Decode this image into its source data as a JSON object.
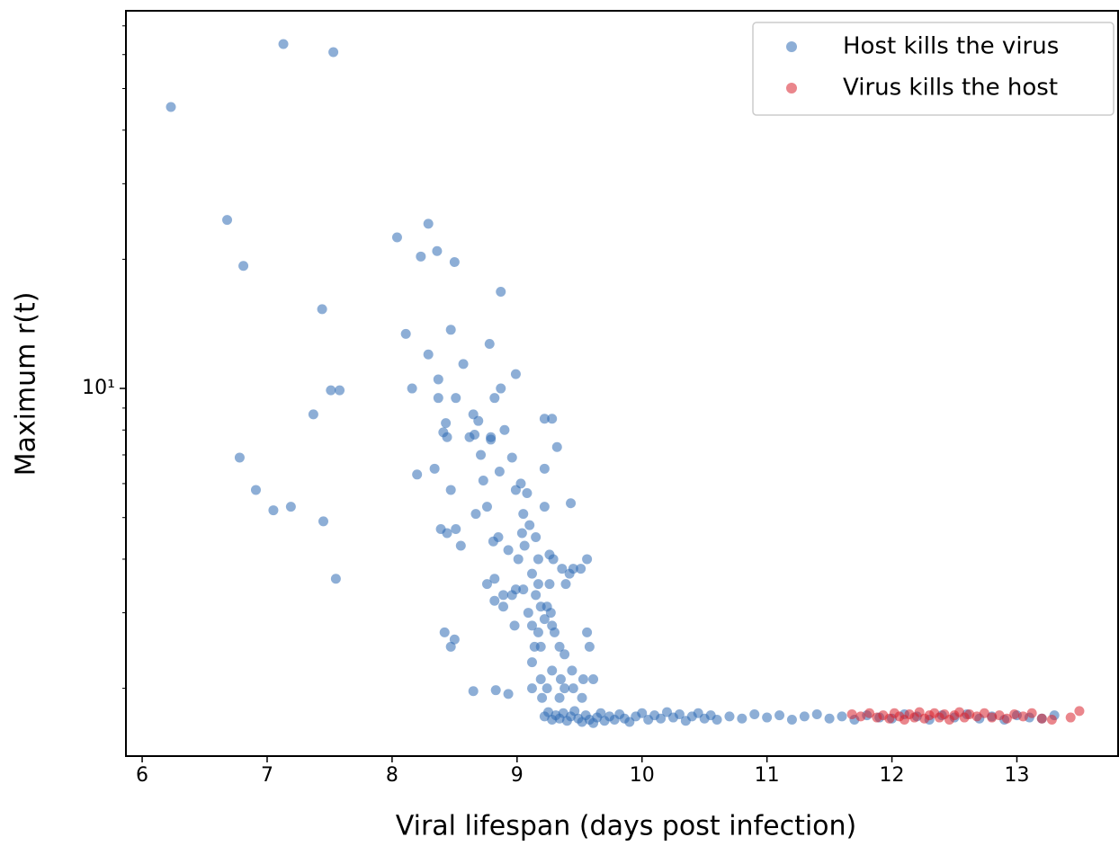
{
  "chart_data": {
    "type": "scatter",
    "xlabel": "Viral lifespan (days post infection)",
    "ylabel": "Maximum r(t)",
    "xlim": [
      5.87,
      13.81
    ],
    "ylim": [
      1.39,
      75.9
    ],
    "log_y": true,
    "xticks": [
      6,
      7,
      8,
      9,
      10,
      11,
      12,
      13
    ],
    "yticks": [
      {
        "value": 10,
        "label": "10¹"
      }
    ],
    "y_minor_ticks": [
      2,
      3,
      4,
      5,
      6,
      7,
      8,
      9,
      20,
      30,
      40,
      50,
      60,
      70
    ],
    "legend": "upper right",
    "series": [
      {
        "name": "Host kills the virus",
        "color": "#2f6cb5",
        "x": [
          6.23,
          7.13,
          7.53,
          6.68,
          6.81,
          7.44,
          7.37,
          7.51,
          7.58,
          6.78,
          6.91,
          7.05,
          7.19,
          7.45,
          7.55,
          8.04,
          8.29,
          8.23,
          8.36,
          8.5,
          8.87,
          8.11,
          8.47,
          8.78,
          8.29,
          8.57,
          8.99,
          8.37,
          8.16,
          8.87,
          8.37,
          8.51,
          8.82,
          8.65,
          8.43,
          8.69,
          9.22,
          9.28,
          8.41,
          8.44,
          8.62,
          8.66,
          8.79,
          8.79,
          8.9,
          9.32,
          8.71,
          8.96,
          8.34,
          8.2,
          8.86,
          9.22,
          8.73,
          9.03,
          8.99,
          9.08,
          8.47,
          9.43,
          9.22,
          8.76,
          8.67,
          9.05,
          9.1,
          8.39,
          8.44,
          8.51,
          9.04,
          9.15,
          8.81,
          8.85,
          9.06,
          8.55,
          8.93,
          9.01,
          9.17,
          9.26,
          9.29,
          9.56,
          9.36,
          9.45,
          9.51,
          9.42,
          9.12,
          8.82,
          8.76,
          9.05,
          9.17,
          9.26,
          9.39,
          8.99,
          8.89,
          8.96,
          9.15,
          8.82,
          9.24,
          8.89,
          9.09,
          9.19,
          9.27,
          9.22,
          9.28,
          8.98,
          9.12,
          9.17,
          9.3,
          9.56,
          8.42,
          8.5,
          9.14,
          9.34,
          8.47,
          9.19,
          9.38,
          9.58,
          9.12,
          9.28,
          9.44,
          9.19,
          9.35,
          9.53,
          9.61,
          9.12,
          9.24,
          9.38,
          9.45,
          9.2,
          9.34,
          9.52,
          8.65,
          8.83,
          8.93,
          9.22,
          9.25,
          9.28,
          9.31,
          9.34,
          9.37,
          9.4,
          9.43,
          9.46,
          9.49,
          9.52,
          9.55,
          9.58,
          9.61,
          9.64,
          9.67,
          9.7,
          9.74,
          9.78,
          9.82,
          9.86,
          9.9,
          9.95,
          10.0,
          10.05,
          10.1,
          10.15,
          10.2,
          10.25,
          10.3,
          10.35,
          10.4,
          10.45,
          10.5,
          10.55,
          10.6,
          10.7,
          10.8,
          10.9,
          11.0,
          11.1,
          11.2,
          11.3,
          11.4,
          11.5,
          11.6,
          11.7,
          11.8,
          11.9,
          12.0,
          12.1,
          12.2,
          12.3,
          12.4,
          12.5,
          12.6,
          12.7,
          12.8,
          12.9,
          13.0,
          13.1,
          13.2,
          13.3
        ],
        "y": [
          45.3,
          63.5,
          60.8,
          24.7,
          19.3,
          15.3,
          8.7,
          9.9,
          9.9,
          6.9,
          5.8,
          5.2,
          5.3,
          4.9,
          3.6,
          22.5,
          24.2,
          20.3,
          20.9,
          19.7,
          16.8,
          13.4,
          13.7,
          12.7,
          12.0,
          11.4,
          10.8,
          10.5,
          10,
          10,
          9.5,
          9.5,
          9.5,
          8.7,
          8.3,
          8.4,
          8.5,
          8.5,
          7.9,
          7.7,
          7.7,
          7.8,
          7.7,
          7.6,
          8.0,
          7.3,
          7.0,
          6.9,
          6.5,
          6.3,
          6.4,
          6.5,
          6.1,
          6.0,
          5.8,
          5.7,
          5.8,
          5.4,
          5.3,
          5.3,
          5.1,
          5.1,
          4.8,
          4.7,
          4.6,
          4.7,
          4.6,
          4.5,
          4.4,
          4.5,
          4.3,
          4.3,
          4.2,
          4.0,
          4.0,
          4.1,
          4.0,
          4.0,
          3.8,
          3.8,
          3.8,
          3.7,
          3.7,
          3.6,
          3.5,
          3.4,
          3.5,
          3.5,
          3.5,
          3.4,
          3.3,
          3.3,
          3.3,
          3.2,
          3.1,
          3.1,
          3.0,
          3.1,
          3.0,
          2.9,
          2.8,
          2.8,
          2.8,
          2.7,
          2.7,
          2.7,
          2.7,
          2.6,
          2.5,
          2.5,
          2.5,
          2.5,
          2.4,
          2.5,
          2.3,
          2.2,
          2.2,
          2.1,
          2.1,
          2.1,
          2.1,
          2.0,
          2.0,
          2.0,
          2.0,
          1.9,
          1.9,
          1.9,
          1.97,
          1.98,
          1.94,
          1.72,
          1.76,
          1.69,
          1.73,
          1.7,
          1.75,
          1.68,
          1.72,
          1.77,
          1.7,
          1.67,
          1.73,
          1.69,
          1.66,
          1.71,
          1.75,
          1.68,
          1.72,
          1.69,
          1.74,
          1.7,
          1.67,
          1.72,
          1.75,
          1.69,
          1.73,
          1.7,
          1.76,
          1.71,
          1.74,
          1.68,
          1.72,
          1.75,
          1.7,
          1.73,
          1.69,
          1.72,
          1.7,
          1.74,
          1.71,
          1.73,
          1.69,
          1.72,
          1.74,
          1.7,
          1.72,
          1.69,
          1.73,
          1.71,
          1.7,
          1.74,
          1.72,
          1.69,
          1.73,
          1.71,
          1.74,
          1.7,
          1.72,
          1.69,
          1.73,
          1.71,
          1.7,
          1.73
        ]
      },
      {
        "name": "Virus kills the host",
        "color": "#d9232e",
        "x": [
          11.68,
          11.75,
          11.82,
          11.88,
          11.93,
          11.98,
          12.02,
          12.06,
          12.1,
          12.14,
          12.18,
          12.22,
          12.26,
          12.3,
          12.34,
          12.38,
          12.42,
          12.46,
          12.5,
          12.54,
          12.58,
          12.62,
          12.68,
          12.74,
          12.8,
          12.86,
          12.92,
          12.98,
          13.05,
          13.12,
          13.2,
          13.28,
          13.43,
          13.5
        ],
        "y": [
          1.74,
          1.72,
          1.75,
          1.71,
          1.73,
          1.7,
          1.75,
          1.72,
          1.69,
          1.74,
          1.71,
          1.76,
          1.7,
          1.73,
          1.75,
          1.71,
          1.74,
          1.69,
          1.73,
          1.76,
          1.71,
          1.74,
          1.72,
          1.75,
          1.71,
          1.73,
          1.7,
          1.74,
          1.72,
          1.75,
          1.7,
          1.69,
          1.71,
          1.77
        ]
      }
    ]
  }
}
